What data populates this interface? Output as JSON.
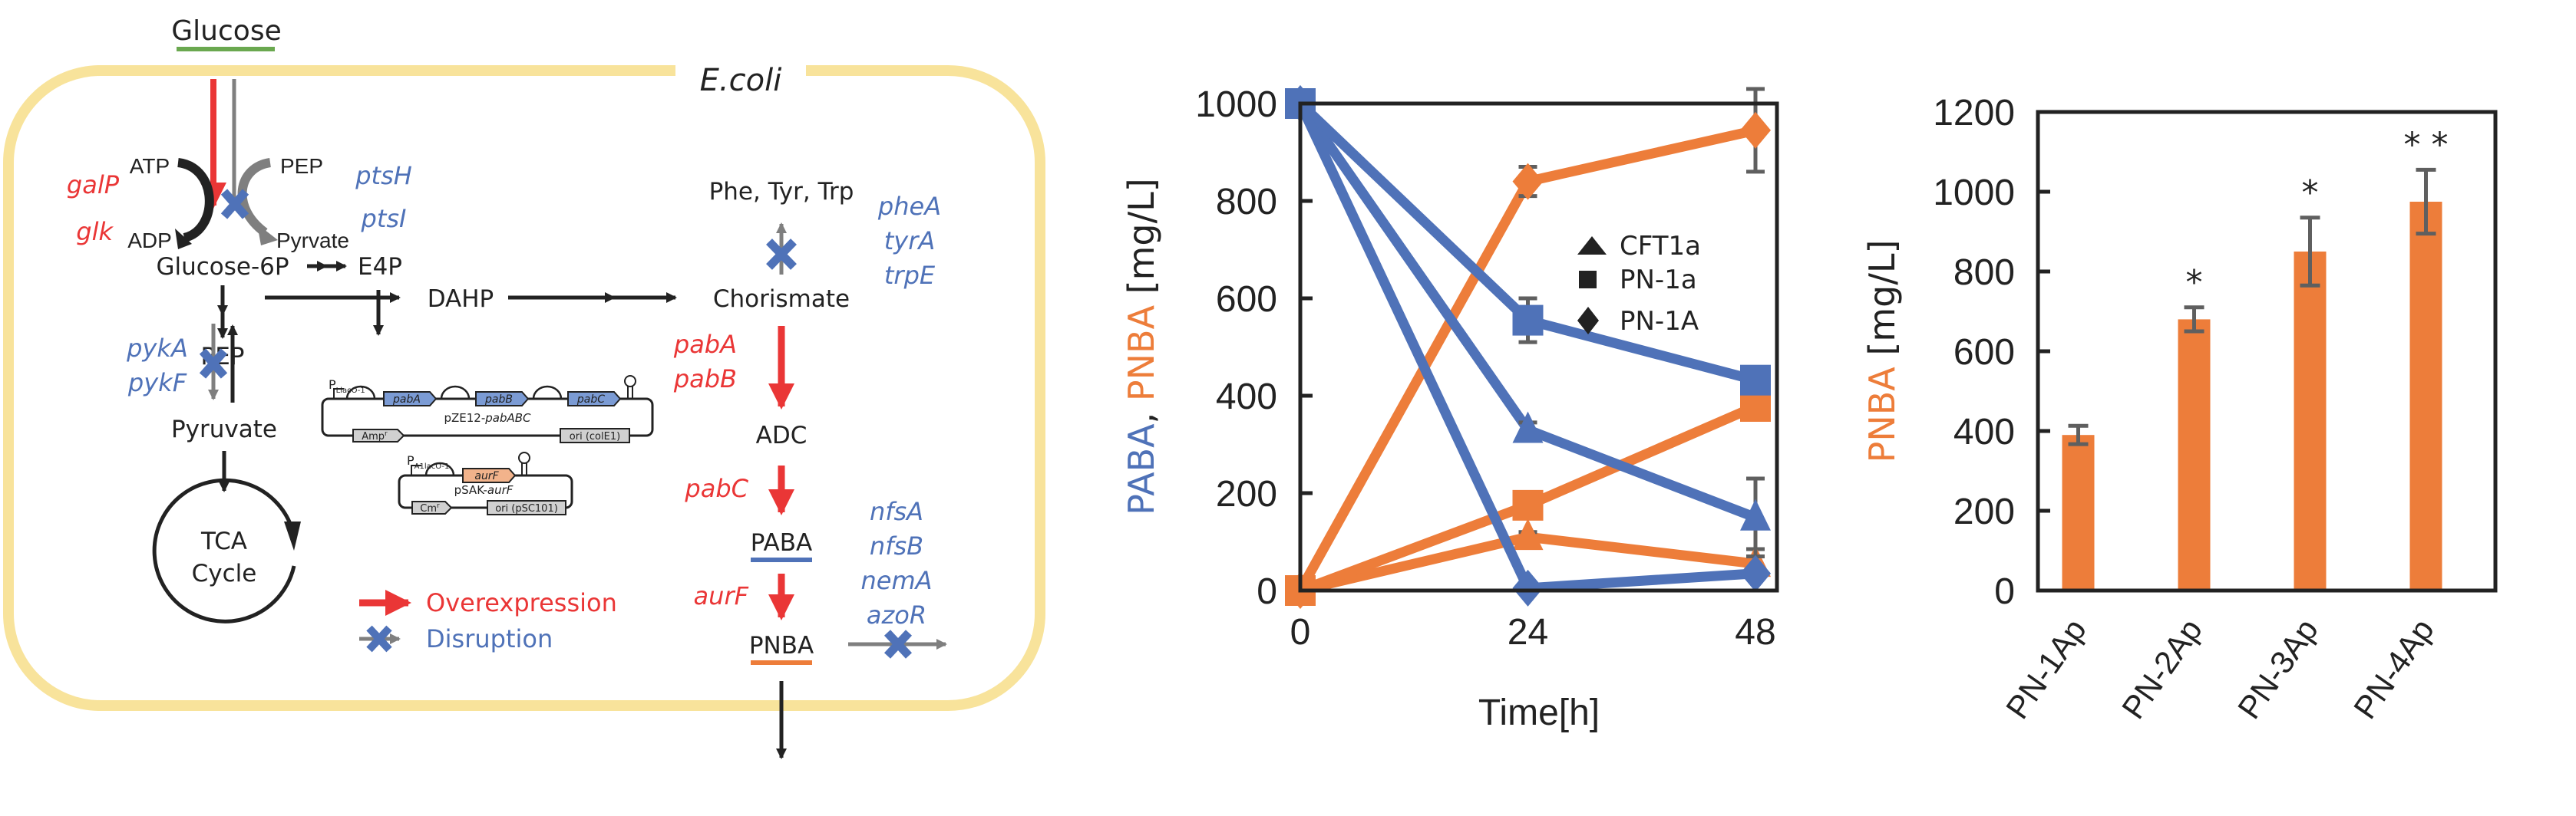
{
  "colors": {
    "overexpression": "#ea3636",
    "disruption": "#4f72b8",
    "paba": "#4f72b8",
    "pnba": "#ed7d3a",
    "cell_membrane": "#f8e39b",
    "glucose_underline": "#6aa84f",
    "gray_arrow": "#7f7f7f",
    "dark": "#222222",
    "plasmid_blue": "#7b9bd4",
    "plasmid_orange": "#f2b38b",
    "plasmid_gray": "#d0d0d0",
    "errorbar": "#5f5f5f"
  },
  "pathway": {
    "cell_label": "E.coli",
    "glucose": "Glucose",
    "atp": "ATP",
    "adp": "ADP",
    "pep_cofactor": "PEP",
    "pyruvate_cofactor": "Pyrvate",
    "glucose6p": "Glucose-6P",
    "e4p": "E4P",
    "pep": "PEP",
    "dahp": "DAHP",
    "pyruvate": "Pyruvate",
    "tca_line1": "TCA",
    "tca_line2": "Cycle",
    "aromatics": "Phe, Tyr, Trp",
    "chorismate": "Chorismate",
    "adc": "ADC",
    "paba": "PABA",
    "pnba": "PNBA",
    "genes_overexpressed": {
      "glucose_uptake": [
        "galP",
        "glk"
      ],
      "chorismate_to_adc": [
        "pabA",
        "pabB"
      ],
      "adc_to_paba": [
        "pabC"
      ],
      "paba_to_pnba": [
        "aurF"
      ]
    },
    "genes_disrupted": {
      "pts": [
        "ptsH",
        "ptsI"
      ],
      "pyruvate_kinase": [
        "pykA",
        "pykF"
      ],
      "aromatics": [
        "pheA",
        "tyrA",
        "trpE"
      ],
      "pnba_degradation": [
        "nfsA",
        "nfsB",
        "nemA",
        "azoR"
      ]
    },
    "legend": {
      "overexpression": "Overexpression",
      "disruption": "Disruption"
    }
  },
  "plasmids": [
    {
      "name_plain": "pZE12-",
      "name_italic": "pabABC",
      "promoter_main": "P",
      "promoter_sub": "LlacO-1",
      "genes": [
        "pabA",
        "pabB",
        "pabC"
      ],
      "marker": "Amp",
      "marker_sup": "r",
      "ori": "ori (colE1)"
    },
    {
      "name_plain": "pSAK-",
      "name_italic": "aurF",
      "promoter_main": "P",
      "promoter_sub": "A1lacO-1",
      "genes": [
        "aurF"
      ],
      "marker": "Cm",
      "marker_sup": "r",
      "ori": "ori (pSC101)"
    }
  ],
  "chart_data": [
    {
      "type": "line",
      "title": "",
      "xlabel": "Time[h]",
      "ylabel_parts": [
        {
          "text": "PABA",
          "color": "#4f72b8"
        },
        {
          "text": ", ",
          "color": "#222222"
        },
        {
          "text": "PNBA",
          "color": "#ed7d3a"
        },
        {
          "text": " [mg/L]",
          "color": "#222222"
        }
      ],
      "x": [
        0,
        24,
        48
      ],
      "xticks": [
        "0",
        "24",
        "48"
      ],
      "ylim": [
        0,
        1000
      ],
      "yticks": [
        "0",
        "200",
        "400",
        "600",
        "800",
        "1000"
      ],
      "grid": false,
      "legend": {
        "placement": "center-right",
        "entries": [
          {
            "marker": "triangle",
            "label": "CFT1a"
          },
          {
            "marker": "square",
            "label": "PN-1a"
          },
          {
            "marker": "diamond",
            "label": "PN-1A"
          }
        ]
      },
      "series": [
        {
          "name": "CFT1a PABA",
          "compound": "PABA",
          "strain": "CFT1a",
          "marker": "triangle",
          "color": "#4f72b8",
          "values": [
            1000,
            330,
            150
          ],
          "errors": [
            0,
            15,
            80
          ]
        },
        {
          "name": "PN-1a PABA",
          "compound": "PABA",
          "strain": "PN-1a",
          "marker": "square",
          "color": "#4f72b8",
          "values": [
            1000,
            555,
            432
          ],
          "errors": [
            0,
            45,
            0
          ]
        },
        {
          "name": "PN-1A PABA",
          "compound": "PABA",
          "strain": "PN-1A",
          "marker": "diamond",
          "color": "#4f72b8",
          "values": [
            1000,
            5,
            35
          ],
          "errors": [
            0,
            0,
            0
          ]
        },
        {
          "name": "CFT1a PNBA",
          "compound": "PNBA",
          "strain": "CFT1a",
          "marker": "triangle",
          "color": "#ed7d3a",
          "values": [
            0,
            110,
            55
          ],
          "errors": [
            0,
            10,
            30
          ]
        },
        {
          "name": "PN-1a PNBA",
          "compound": "PNBA",
          "strain": "PN-1a",
          "marker": "square",
          "color": "#ed7d3a",
          "values": [
            0,
            175,
            378
          ],
          "errors": [
            0,
            0,
            0
          ]
        },
        {
          "name": "PN-1A PNBA",
          "compound": "PNBA",
          "strain": "PN-1A",
          "marker": "diamond",
          "color": "#ed7d3a",
          "values": [
            0,
            840,
            945
          ],
          "errors": [
            0,
            30,
            85
          ]
        }
      ]
    },
    {
      "type": "bar",
      "title": "",
      "xlabel": "",
      "ylabel": "PNBA [mg/L]",
      "ylabel_parts": [
        {
          "text": "PNBA",
          "color": "#ed7d3a"
        },
        {
          "text": " [mg/L]",
          "color": "#222222"
        }
      ],
      "categories": [
        "PN-1Ap",
        "PN-2Ap",
        "PN-3Ap",
        "PN-4Ap"
      ],
      "values": [
        390,
        680,
        850,
        975
      ],
      "errors": [
        23,
        30,
        85,
        80
      ],
      "significance": [
        "",
        "*",
        "*",
        "* *"
      ],
      "color": "#ed7d3a",
      "ylim": [
        0,
        1200
      ],
      "yticks": [
        "0",
        "200",
        "400",
        "600",
        "800",
        "1000",
        "1200"
      ],
      "grid": false
    }
  ]
}
